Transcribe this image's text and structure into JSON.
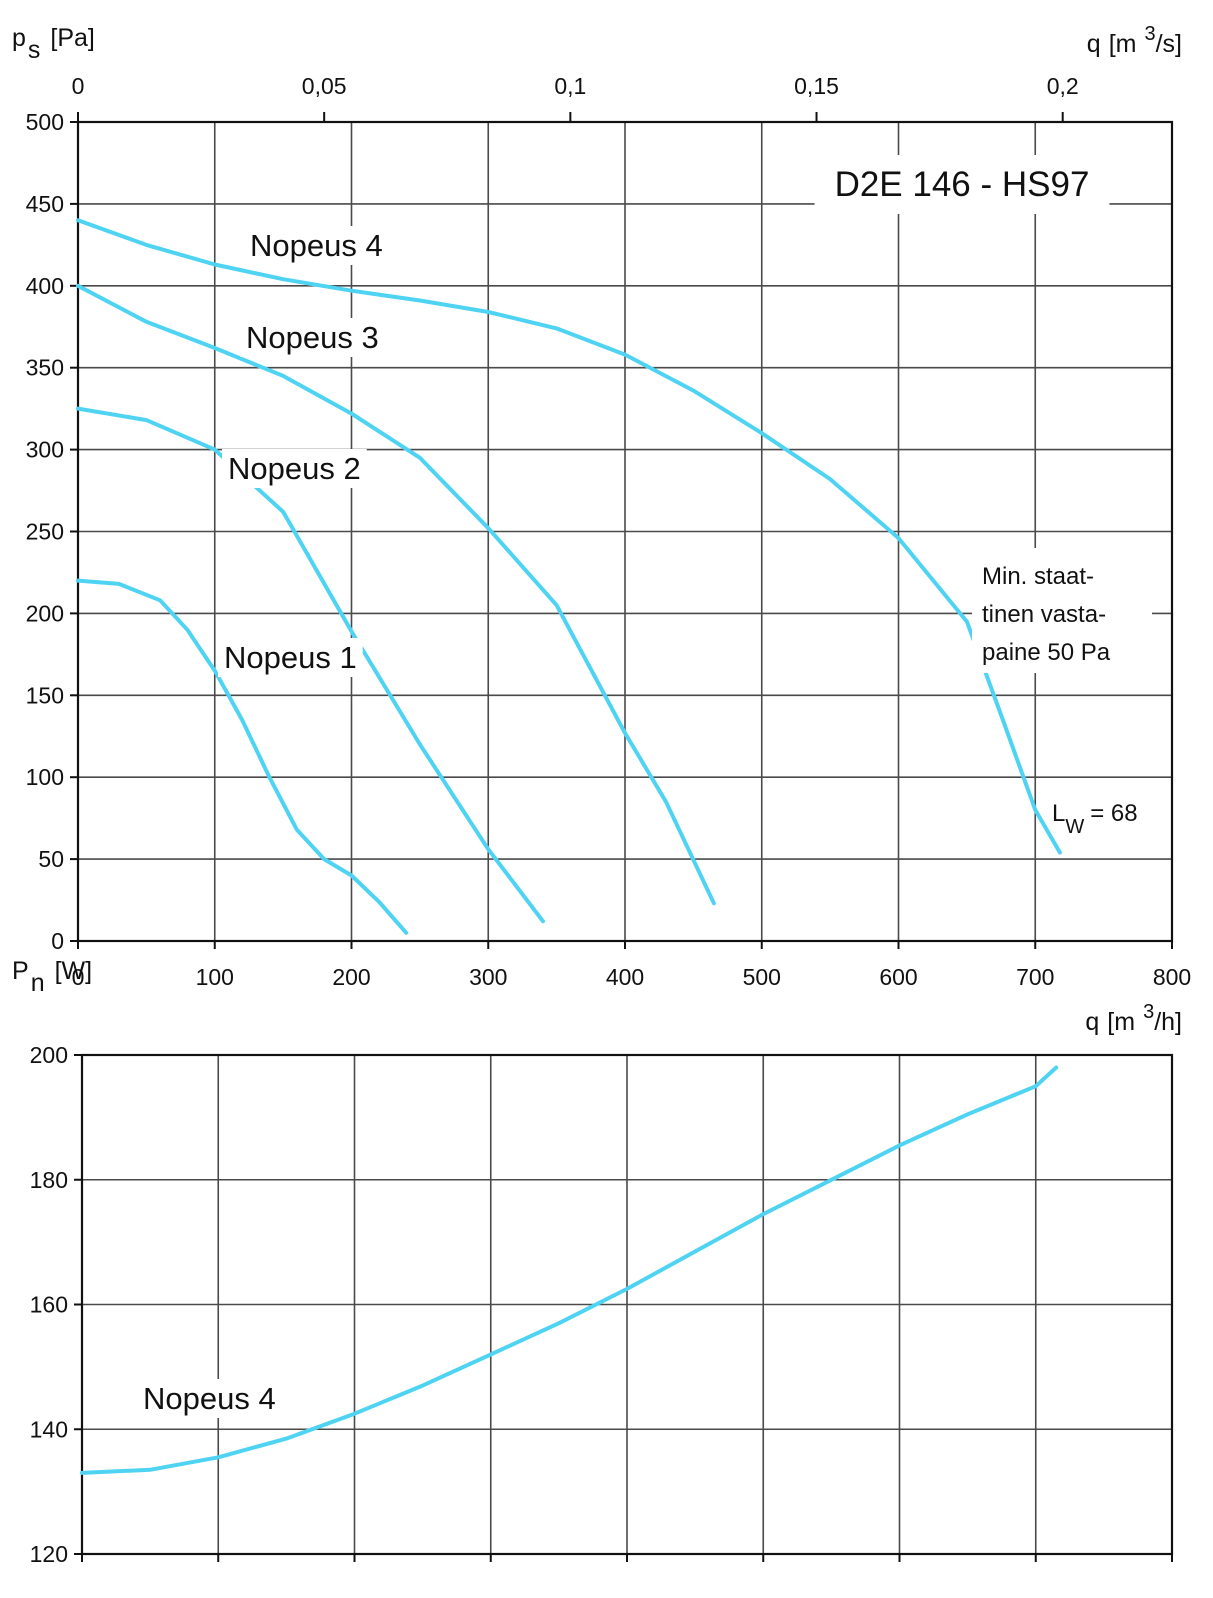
{
  "chart_data": [
    {
      "type": "line",
      "title": "D2E 146 - HS97",
      "y_label": {
        "symbol": "p",
        "subscript": "s",
        "unit": "[Pa]"
      },
      "x_label": {
        "symbol": "q",
        "unit_start": "[m",
        "superscript": "3",
        "unit_end": "/h]"
      },
      "x2_label": {
        "symbol": "q",
        "unit_start": "[m",
        "superscript": "3",
        "unit_end": "/s]"
      },
      "xlim": [
        0,
        800
      ],
      "xticks": [
        0,
        100,
        200,
        300,
        400,
        500,
        600,
        700,
        800
      ],
      "x2lim": [
        0,
        0.2222
      ],
      "x2ticks": [
        0,
        {
          "value": 0.05,
          "label": "0,05"
        },
        {
          "value": 0.1,
          "label": "0,1"
        },
        {
          "value": 0.15,
          "label": "0,15"
        },
        {
          "value": 0.2,
          "label": "0,2"
        }
      ],
      "ylim": [
        0,
        500
      ],
      "yticks": [
        0,
        50,
        100,
        150,
        200,
        250,
        300,
        350,
        400,
        450,
        500
      ],
      "grid": true,
      "series": [
        {
          "name": "Nopeus 4",
          "color": "#4fd3f3",
          "x": [
            0,
            50,
            100,
            150,
            200,
            250,
            300,
            350,
            400,
            450,
            500,
            550,
            600,
            650,
            675,
            700,
            718
          ],
          "values": [
            440,
            425,
            413,
            404,
            397,
            391,
            384,
            374,
            358,
            336,
            310,
            282,
            246,
            195,
            138,
            80,
            54
          ]
        },
        {
          "name": "Nopeus 3",
          "color": "#4fd3f3",
          "x": [
            0,
            50,
            100,
            150,
            200,
            250,
            300,
            350,
            400,
            430,
            465
          ],
          "values": [
            400,
            378,
            362,
            345,
            322,
            295,
            252,
            205,
            127,
            85,
            23
          ]
        },
        {
          "name": "Nopeus 2",
          "color": "#4fd3f3",
          "x": [
            0,
            50,
            100,
            150,
            200,
            250,
            300,
            340
          ],
          "values": [
            325,
            318,
            300,
            262,
            189,
            120,
            56,
            12
          ]
        },
        {
          "name": "Nopeus 1",
          "color": "#4fd3f3",
          "x": [
            0,
            30,
            60,
            80,
            100,
            120,
            140,
            160,
            180,
            200,
            220,
            240
          ],
          "values": [
            220,
            218,
            208,
            190,
            165,
            135,
            100,
            68,
            50,
            40,
            24,
            5
          ]
        }
      ],
      "annotations": [
        {
          "text": "Min. staat-"
        },
        {
          "text": "tinen vasta-"
        },
        {
          "text": "paine 50 Pa"
        }
      ],
      "sound_level": {
        "symbol": "L",
        "subscript": "W",
        "text": "= 68"
      }
    },
    {
      "type": "line",
      "y_label": {
        "symbol": "P",
        "subscript": "n",
        "unit": "[W]"
      },
      "xlim": [
        0,
        800
      ],
      "xticks": [
        0,
        100,
        200,
        300,
        400,
        500,
        600,
        700,
        800
      ],
      "ylim": [
        120,
        200
      ],
      "yticks": [
        120,
        140,
        160,
        180,
        200
      ],
      "grid": true,
      "series": [
        {
          "name": "Nopeus 4",
          "color": "#4fd3f3",
          "x": [
            0,
            50,
            100,
            150,
            200,
            250,
            300,
            350,
            400,
            450,
            500,
            550,
            600,
            650,
            700,
            715
          ],
          "values": [
            133,
            133.5,
            135.5,
            138.5,
            142.5,
            147,
            152,
            157,
            162.5,
            168.5,
            174.5,
            180,
            185.5,
            190.5,
            195,
            198
          ]
        }
      ]
    }
  ]
}
